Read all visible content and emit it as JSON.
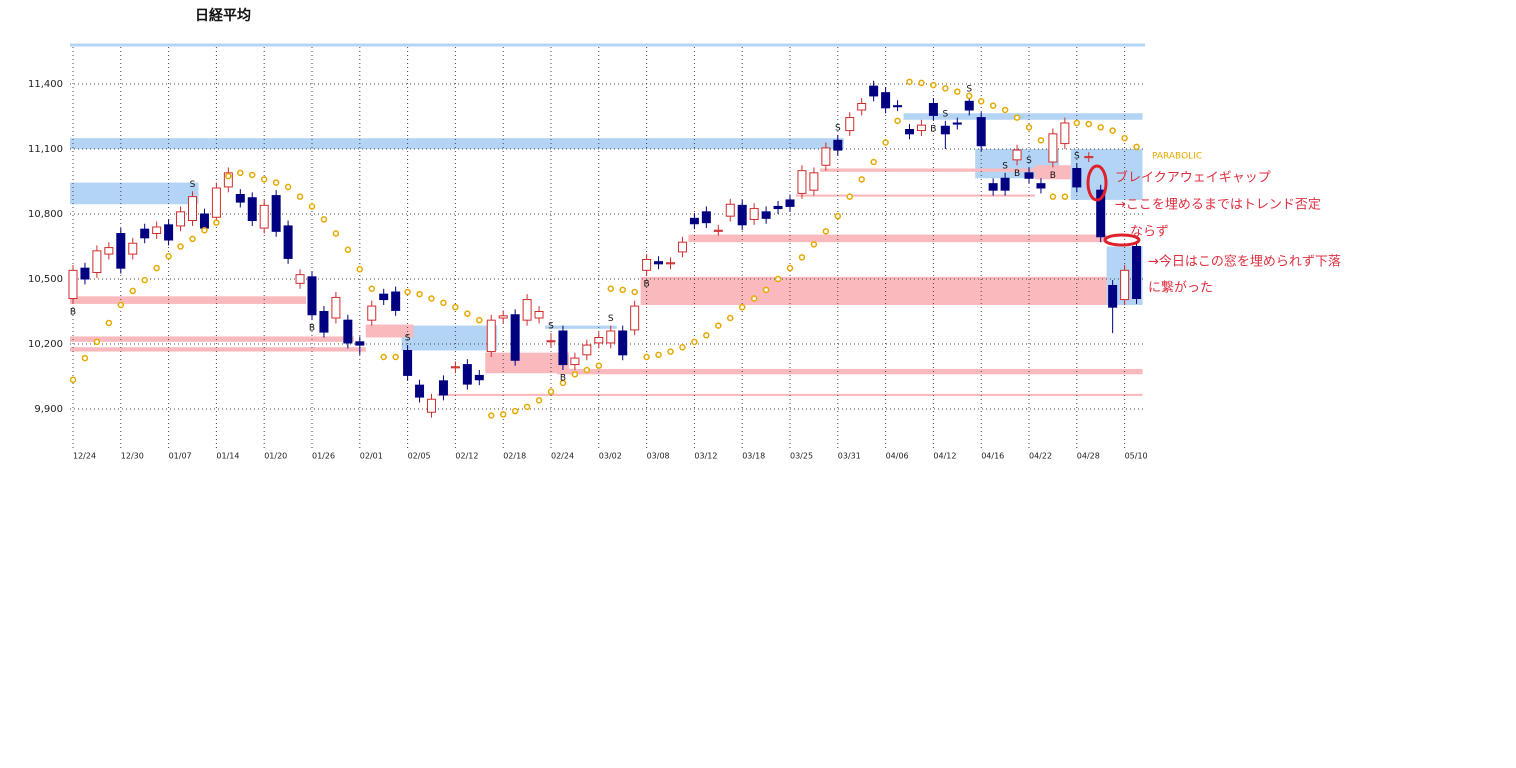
{
  "chart_data": {
    "type": "candlestick",
    "title": "日経平均",
    "categories": [
      "12/24",
      null,
      null,
      null,
      "12/30",
      null,
      null,
      null,
      "01/07",
      null,
      null,
      null,
      "01/14",
      null,
      null,
      null,
      "01/20",
      null,
      null,
      null,
      "01/26",
      null,
      null,
      null,
      "02/01",
      null,
      null,
      null,
      "02/05",
      null,
      null,
      null,
      "02/12",
      null,
      null,
      null,
      "02/18",
      null,
      null,
      null,
      "02/24",
      null,
      null,
      null,
      "03/02",
      null,
      null,
      null,
      "03/08",
      null,
      null,
      null,
      "03/12",
      null,
      null,
      null,
      "03/18",
      null,
      null,
      null,
      "03/25",
      null,
      null,
      null,
      "03/31",
      null,
      null,
      null,
      "04/06",
      null,
      null,
      null,
      "04/12",
      null,
      null,
      null,
      "04/16",
      null,
      null,
      null,
      "04/22",
      null,
      null,
      null,
      "04/28",
      null,
      null,
      null,
      "05/10",
      null
    ],
    "open": [
      10410,
      10550,
      10530,
      10615,
      10710,
      10615,
      10730,
      10710,
      10750,
      10745,
      10770,
      10800,
      10785,
      10925,
      10890,
      10875,
      10735,
      10885,
      10745,
      10480,
      10510,
      10350,
      10320,
      10310,
      10210,
      10310,
      10430,
      10440,
      10170,
      10010,
      9885,
      10030,
      10090,
      10105,
      10055,
      10165,
      10320,
      10335,
      10310,
      10320,
      10210,
      10260,
      10105,
      10150,
      10205,
      10205,
      10260,
      10265,
      10540,
      10580,
      10570,
      10625,
      10780,
      10810,
      10720,
      10790,
      10840,
      10775,
      10810,
      10835,
      10865,
      10895,
      10910,
      11025,
      11140,
      11185,
      11280,
      11390,
      11360,
      11300,
      11190,
      11185,
      11310,
      11205,
      11220,
      11320,
      11245,
      10940,
      10965,
      11050,
      10990,
      10940,
      11040,
      11125,
      11010,
      11060,
      10910,
      10470,
      10405,
      10650
    ],
    "high": [
      10565,
      10575,
      10655,
      10670,
      10735,
      10690,
      10755,
      10765,
      10775,
      10835,
      10905,
      10825,
      10945,
      11015,
      10915,
      10900,
      10865,
      10910,
      10770,
      10545,
      10535,
      10375,
      10440,
      10335,
      10235,
      10400,
      10455,
      10465,
      10195,
      10035,
      9970,
      10055,
      10120,
      10130,
      10080,
      10335,
      10355,
      10360,
      10430,
      10375,
      10250,
      10285,
      10160,
      10220,
      10255,
      10285,
      10285,
      10400,
      10615,
      10605,
      10600,
      10695,
      10805,
      10835,
      10750,
      10870,
      10865,
      10850,
      10835,
      10860,
      10890,
      11025,
      11015,
      11130,
      11165,
      11270,
      11335,
      11415,
      11385,
      11325,
      11215,
      11235,
      11335,
      11230,
      11245,
      11345,
      11270,
      10965,
      10990,
      11120,
      11015,
      10965,
      11195,
      11245,
      11035,
      11085,
      10935,
      10495,
      10565,
      10675
    ],
    "low": [
      10385,
      10475,
      10505,
      10590,
      10525,
      10590,
      10665,
      10685,
      10655,
      10720,
      10745,
      10710,
      10760,
      10900,
      10830,
      10745,
      10710,
      10695,
      10570,
      10455,
      10310,
      10230,
      10295,
      10180,
      10150,
      10285,
      10380,
      10330,
      10030,
      9930,
      9860,
      9940,
      10065,
      9990,
      10010,
      10140,
      10295,
      10100,
      10285,
      10295,
      10185,
      10080,
      10080,
      10125,
      10180,
      10180,
      10125,
      10240,
      10515,
      10545,
      10545,
      10600,
      10730,
      10735,
      10700,
      10765,
      10725,
      10750,
      10755,
      10800,
      10810,
      10870,
      10885,
      11000,
      11070,
      11160,
      11255,
      11320,
      11265,
      11275,
      11145,
      11160,
      11230,
      11100,
      11190,
      11255,
      11090,
      10885,
      10885,
      11025,
      10940,
      10895,
      11015,
      11100,
      10900,
      11040,
      10670,
      10250,
      10380,
      10385
    ],
    "close": [
      10540,
      10500,
      10630,
      10645,
      10550,
      10665,
      10690,
      10740,
      10680,
      10810,
      10880,
      10735,
      10920,
      10990,
      10855,
      10770,
      10840,
      10720,
      10595,
      10520,
      10335,
      10255,
      10415,
      10205,
      10195,
      10375,
      10405,
      10355,
      10055,
      9955,
      9945,
      9965,
      10095,
      10015,
      10035,
      10310,
      10330,
      10125,
      10405,
      10350,
      10215,
      10105,
      10135,
      10195,
      10230,
      10260,
      10150,
      10375,
      10590,
      10570,
      10575,
      10670,
      10755,
      10760,
      10725,
      10845,
      10750,
      10825,
      10780,
      10825,
      10835,
      11000,
      10990,
      11105,
      11095,
      11245,
      11310,
      11345,
      11290,
      11295,
      11170,
      11210,
      11255,
      11170,
      11215,
      11280,
      11115,
      10910,
      10910,
      11095,
      10965,
      10920,
      11170,
      11220,
      10925,
      11065,
      10695,
      10370,
      10540,
      10410
    ],
    "up_color": "#d02c2c",
    "down_color": "#000080",
    "sar": {
      "name": "PARABOLIC",
      "color": "#e6a800",
      "values": [
        10035,
        10135,
        10210,
        10297,
        10380,
        10445,
        10495,
        10550,
        10605,
        10650,
        10685,
        10725,
        10760,
        10975,
        10990,
        10980,
        10960,
        10945,
        10925,
        10880,
        10835,
        10775,
        10710,
        10635,
        10545,
        10455,
        10140,
        10140,
        10440,
        10430,
        10410,
        10390,
        10370,
        10340,
        10310,
        9870,
        9875,
        9890,
        9910,
        9940,
        9980,
        10020,
        10060,
        10080,
        10100,
        10455,
        10450,
        10440,
        10140,
        10150,
        10165,
        10185,
        10210,
        10240,
        10285,
        10320,
        10370,
        10410,
        10450,
        10500,
        10550,
        10600,
        10660,
        10720,
        10790,
        10880,
        10960,
        11040,
        11130,
        11230,
        11410,
        11405,
        11395,
        11380,
        11365,
        11345,
        11320,
        11300,
        11280,
        11245,
        11200,
        11140,
        10880,
        10880,
        11220,
        11215,
        11200,
        11185,
        11150,
        11110
      ]
    },
    "signals": [
      "B",
      null,
      null,
      null,
      null,
      null,
      null,
      null,
      null,
      null,
      "S",
      null,
      null,
      null,
      null,
      null,
      null,
      null,
      null,
      null,
      "B",
      null,
      null,
      null,
      null,
      null,
      null,
      null,
      "S",
      null,
      null,
      null,
      null,
      null,
      null,
      null,
      null,
      null,
      null,
      null,
      "S",
      "B",
      null,
      null,
      null,
      "S",
      null,
      null,
      "B",
      null,
      null,
      null,
      null,
      null,
      null,
      null,
      null,
      null,
      null,
      null,
      null,
      null,
      null,
      null,
      "S",
      null,
      null,
      null,
      null,
      null,
      null,
      null,
      "B",
      "S",
      null,
      "S",
      null,
      null,
      "S",
      "B",
      "S",
      null,
      "B",
      null,
      "S",
      null,
      null,
      null,
      null,
      null
    ],
    "zones": [
      {
        "color": "#b3d4f5",
        "start": 0,
        "end": 64,
        "low": 11100,
        "high": 11150
      },
      {
        "color": "#b3d4f5",
        "start": 0,
        "end": 10,
        "low": 10845,
        "high": 10945
      },
      {
        "color": "#b3d4f5",
        "start": 28,
        "end": 35,
        "low": 10170,
        "high": 10285
      },
      {
        "color": "#b3d4f5",
        "start": 40,
        "end": 45,
        "low": 10270,
        "high": 10285
      },
      {
        "color": "#b3d4f5",
        "start": 70,
        "end": 89,
        "low": 11235,
        "high": 11265
      },
      {
        "color": "#b3d4f5",
        "start": 76,
        "end": 82,
        "low": 10965,
        "high": 11100
      },
      {
        "color": "#b3d4f5",
        "start": 84,
        "end": 89,
        "low": 10865,
        "high": 11100
      },
      {
        "color": "#b3d4f5",
        "start": 87,
        "end": 89,
        "low": 10380,
        "high": 10650
      },
      {
        "color": "#f9b9bd",
        "start": 0,
        "end": 19,
        "low": 10385,
        "high": 10420
      },
      {
        "color": "#f9b9bd",
        "start": 0,
        "end": 23,
        "low": 10210,
        "high": 10235
      },
      {
        "color": "#f9b9bd",
        "start": 0,
        "end": 24,
        "low": 10165,
        "high": 10185
      },
      {
        "color": "#f9b9bd",
        "start": 25,
        "end": 28,
        "low": 10230,
        "high": 10290
      },
      {
        "color": "#f9b9bd",
        "start": 35,
        "end": 41,
        "low": 10065,
        "high": 10160
      },
      {
        "color": "#f9b9bd",
        "start": 41,
        "end": 89,
        "low": 10060,
        "high": 10085
      },
      {
        "color": "#f9b9bd",
        "start": 31,
        "end": 89,
        "low": 9960,
        "high": 9970
      },
      {
        "color": "#f9b9bd",
        "start": 48,
        "end": 86,
        "low": 10380,
        "high": 10510
      },
      {
        "color": "#f9b9bd",
        "start": 52,
        "end": 86,
        "low": 10670,
        "high": 10705
      },
      {
        "color": "#f9b9bd",
        "start": 61,
        "end": 80,
        "low": 10880,
        "high": 10890
      },
      {
        "color": "#f9b9bd",
        "start": 63,
        "end": 80,
        "low": 10995,
        "high": 11010
      },
      {
        "color": "#f9b9bd",
        "start": 81,
        "end": 83,
        "low": 10960,
        "high": 11025
      }
    ],
    "ylim": [
      9720,
      11580
    ],
    "yticks": [
      {
        "value": 9900,
        "label": "9,900"
      },
      {
        "value": 10200,
        "label": "10,200"
      },
      {
        "value": 10500,
        "label": "10,500"
      },
      {
        "value": 10800,
        "label": "10,800"
      },
      {
        "value": 11100,
        "label": "11,100"
      },
      {
        "value": 11400,
        "label": "11,400"
      }
    ],
    "grid": true,
    "annotations": [
      "ブレイクアウェイギャップ",
      "→ここを埋めるまではトレンド否定",
      "ならず",
      "→今日はこの窓を埋められず下落",
      "に繋がった"
    ]
  }
}
